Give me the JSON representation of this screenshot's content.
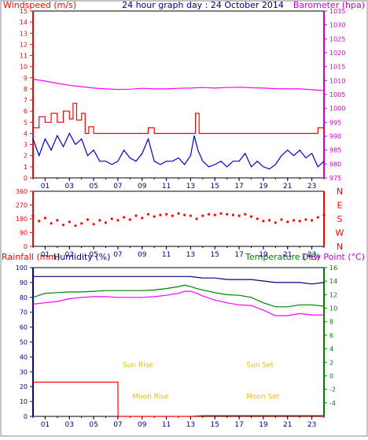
{
  "chart_data": [
    {
      "type": "line",
      "title": "24 hour graph day : 24 October 2014",
      "left_axis_label": "Windspeed (m/s)",
      "right_axis_label": "Barometer (hpa)",
      "left_ylim": [
        0,
        15
      ],
      "left_yticks": [
        0,
        1,
        2,
        3,
        4,
        5,
        6,
        7,
        8,
        9,
        10,
        11,
        12,
        13,
        14,
        15
      ],
      "right_ylim": [
        975,
        1035
      ],
      "right_yticks": [
        975,
        980,
        985,
        990,
        995,
        1000,
        1005,
        1010,
        1015,
        1020,
        1025,
        1030,
        1035
      ],
      "xlim": [
        0,
        24
      ],
      "xtick_labels": [
        "01",
        "03",
        "05",
        "07",
        "09",
        "11",
        "13",
        "15",
        "17",
        "19",
        "21",
        "23"
      ],
      "xtick_values": [
        1,
        3,
        5,
        7,
        9,
        11,
        13,
        15,
        17,
        19,
        21,
        23
      ],
      "grid": false,
      "series": [
        {
          "name": "Barometer",
          "axis": "right",
          "color": "#ff00ff",
          "x": [
            0,
            1,
            2,
            3,
            4,
            5,
            6,
            7,
            8,
            9,
            10,
            11,
            12,
            13,
            14,
            15,
            16,
            17,
            18,
            19,
            20,
            21,
            22,
            23,
            24
          ],
          "y": [
            1010.5,
            1009.8,
            1009.0,
            1008.3,
            1007.8,
            1007.3,
            1007.0,
            1006.8,
            1006.9,
            1007.2,
            1007.0,
            1007.0,
            1007.2,
            1007.3,
            1007.5,
            1007.3,
            1007.5,
            1007.6,
            1007.4,
            1007.3,
            1007.1,
            1007.0,
            1007.0,
            1006.7,
            1006.4
          ]
        },
        {
          "name": "Wind Gust",
          "axis": "left",
          "color": "#ff0000",
          "x": [
            0,
            0.5,
            1,
            1.5,
            2,
            2.5,
            3,
            3.3,
            3.6,
            4,
            4.3,
            4.6,
            5,
            6,
            7,
            8,
            9,
            9.5,
            10,
            11,
            12,
            13,
            13.4,
            13.7,
            14,
            15,
            16,
            17,
            18,
            19,
            20,
            21,
            22,
            23,
            23.5,
            24
          ],
          "y": [
            4.5,
            5.5,
            5.0,
            5.8,
            5.0,
            6.0,
            5.3,
            6.7,
            5.2,
            5.8,
            4.0,
            4.6,
            4.0,
            4.0,
            4.0,
            4.0,
            4.0,
            4.5,
            4.0,
            4.0,
            4.0,
            4.0,
            5.8,
            4.0,
            4.0,
            4.0,
            4.0,
            4.0,
            4.0,
            4.0,
            4.0,
            4.0,
            4.0,
            4.0,
            4.5,
            4.0
          ]
        },
        {
          "name": "Wind Speed",
          "axis": "left",
          "color": "#0000cc",
          "x": [
            0,
            0.5,
            1,
            1.5,
            2,
            2.5,
            3,
            3.5,
            4,
            4.5,
            5,
            5.5,
            6,
            6.5,
            7,
            7.5,
            8,
            8.5,
            9,
            9.5,
            10,
            10.5,
            11,
            11.5,
            12,
            12.5,
            13,
            13.3,
            13.6,
            14,
            14.5,
            15,
            15.5,
            16,
            16.5,
            17,
            17.5,
            18,
            18.5,
            19,
            19.5,
            20,
            20.5,
            21,
            21.5,
            22,
            22.5,
            23,
            23.5,
            24
          ],
          "y": [
            3.5,
            2.0,
            3.5,
            2.5,
            3.8,
            2.8,
            4.0,
            3.0,
            3.5,
            2.0,
            2.5,
            1.5,
            1.5,
            1.2,
            1.5,
            2.5,
            1.8,
            1.5,
            2.2,
            3.5,
            1.5,
            1.2,
            1.5,
            1.5,
            1.8,
            1.2,
            2.0,
            3.8,
            2.5,
            1.5,
            1.0,
            1.2,
            1.5,
            1.0,
            1.5,
            1.5,
            2.2,
            1.0,
            1.5,
            1.0,
            0.8,
            1.2,
            2.0,
            2.5,
            2.0,
            2.5,
            1.8,
            2.2,
            1.0,
            1.5
          ]
        }
      ]
    },
    {
      "type": "scatter",
      "title": "",
      "left_axis_label": "",
      "right_axis_label": "",
      "ylim": [
        0,
        360
      ],
      "yticks": [
        0,
        90,
        180,
        270,
        360
      ],
      "ytick_labels": [
        "0",
        "90",
        "180",
        "270",
        "360"
      ],
      "right_labels": [
        "N",
        "W",
        "S",
        "E",
        "N"
      ],
      "xlim": [
        0,
        24
      ],
      "xtick_labels": [
        "01",
        "03",
        "05",
        "07",
        "09",
        "11",
        "13",
        "15",
        "17",
        "19",
        "21",
        "23"
      ],
      "xtick_values": [
        1,
        3,
        5,
        7,
        9,
        11,
        13,
        15,
        17,
        19,
        21,
        23
      ],
      "series": [
        {
          "name": "Wind Direction",
          "color": "#ff0000",
          "x": [
            0,
            0.5,
            1,
            1.5,
            2,
            2.5,
            3,
            3.5,
            4,
            4.5,
            5,
            5.5,
            6,
            6.5,
            7,
            7.5,
            8,
            8.5,
            9,
            9.5,
            10,
            10.5,
            11,
            11.5,
            12,
            12.5,
            13,
            13.5,
            14,
            14.5,
            15,
            15.5,
            16,
            16.5,
            17,
            17.5,
            18,
            18.5,
            19,
            19.5,
            20,
            20.5,
            21,
            21.5,
            22,
            22.5,
            23,
            23.5,
            24
          ],
          "y": [
            200,
            165,
            185,
            150,
            170,
            140,
            160,
            135,
            150,
            175,
            145,
            170,
            155,
            180,
            170,
            190,
            175,
            200,
            185,
            210,
            195,
            205,
            210,
            200,
            215,
            205,
            200,
            180,
            200,
            210,
            205,
            215,
            210,
            205,
            200,
            210,
            195,
            180,
            165,
            170,
            155,
            175,
            160,
            170,
            165,
            175,
            170,
            190,
            205
          ]
        }
      ]
    },
    {
      "type": "line",
      "title": "",
      "left_axis_labels": [
        "Rainfall (mm)",
        "Humidity (%)"
      ],
      "right_axis_labels": [
        "Temperature (°C)",
        "Dew Point (°C)"
      ],
      "left_ylim": [
        0,
        100
      ],
      "left_yticks": [
        0,
        10,
        20,
        30,
        40,
        50,
        60,
        70,
        80,
        90,
        100
      ],
      "right_ylim": [
        -6,
        16
      ],
      "right_yticks": [
        -4,
        -2,
        0,
        2,
        4,
        6,
        8,
        10,
        12,
        14,
        16
      ],
      "xlim": [
        0,
        24
      ],
      "xtick_labels": [
        "01",
        "03",
        "05",
        "07",
        "09",
        "11",
        "13",
        "15",
        "17",
        "19",
        "21",
        "23"
      ],
      "xtick_values": [
        1,
        3,
        5,
        7,
        9,
        11,
        13,
        15,
        17,
        19,
        21,
        23
      ],
      "annotations": [
        {
          "text": "Sun Rise",
          "x": 7.4,
          "y": 33
        },
        {
          "text": "Sun Set",
          "x": 17.6,
          "y": 33
        },
        {
          "text": "Moon Rise",
          "x": 8.2,
          "y": 12
        },
        {
          "text": "Moon Set",
          "x": 17.6,
          "y": 12
        }
      ],
      "series": [
        {
          "name": "Humidity",
          "axis": "left",
          "color": "#000080",
          "x": [
            0,
            1,
            2,
            3,
            4,
            5,
            6,
            7,
            8,
            9,
            10,
            11,
            12,
            13,
            14,
            15,
            16,
            17,
            18,
            19,
            20,
            21,
            22,
            23,
            24
          ],
          "y": [
            94,
            94,
            94,
            94,
            94,
            94,
            94,
            94,
            94,
            94,
            94,
            94,
            94,
            94,
            93,
            93,
            92,
            92,
            92,
            91,
            90,
            90,
            90,
            89,
            90
          ]
        },
        {
          "name": "Temperature",
          "axis": "right",
          "color": "#008000",
          "x": [
            0,
            1,
            2,
            3,
            4,
            5,
            6,
            7,
            8,
            9,
            10,
            11,
            12,
            12.5,
            13,
            13.5,
            14,
            15,
            16,
            17,
            18,
            19,
            20,
            21,
            22,
            23,
            24
          ],
          "y": [
            11.6,
            12.2,
            12.3,
            12.4,
            12.4,
            12.5,
            12.6,
            12.6,
            12.6,
            12.6,
            12.7,
            12.9,
            13.2,
            13.4,
            13.2,
            12.9,
            12.7,
            12.3,
            12.0,
            11.9,
            11.6,
            10.8,
            10.2,
            10.2,
            10.5,
            10.5,
            10.3
          ]
        },
        {
          "name": "Dew Point",
          "axis": "right",
          "color": "#ff00ff",
          "x": [
            0,
            1,
            2,
            3,
            4,
            5,
            6,
            7,
            8,
            9,
            10,
            11,
            12,
            12.5,
            13,
            13.5,
            14,
            15,
            16,
            17,
            18,
            19,
            20,
            21,
            22,
            23,
            24
          ],
          "y": [
            10.6,
            10.8,
            11.0,
            11.4,
            11.6,
            11.7,
            11.7,
            11.6,
            11.6,
            11.6,
            11.7,
            11.9,
            12.2,
            12.5,
            12.5,
            12.2,
            11.8,
            11.2,
            10.8,
            10.5,
            10.4,
            9.7,
            8.9,
            8.9,
            9.2,
            9.0,
            9.0
          ]
        },
        {
          "name": "Rainfall",
          "axis": "left",
          "color": "#ff0000",
          "x": [
            0,
            1,
            2,
            3,
            4,
            5,
            6,
            7,
            7.01,
            8,
            9,
            10,
            11,
            12,
            13,
            14,
            15,
            16,
            17,
            18,
            19,
            20,
            21,
            22,
            23,
            24
          ],
          "y": [
            23,
            23,
            23,
            23,
            23,
            23,
            23,
            23,
            0,
            0,
            0,
            0,
            0,
            0,
            0,
            0.5,
            0.5,
            0.5,
            0.5,
            0.5,
            0.5,
            0.5,
            0.5,
            0.5,
            0.5,
            0.5
          ]
        }
      ]
    }
  ]
}
